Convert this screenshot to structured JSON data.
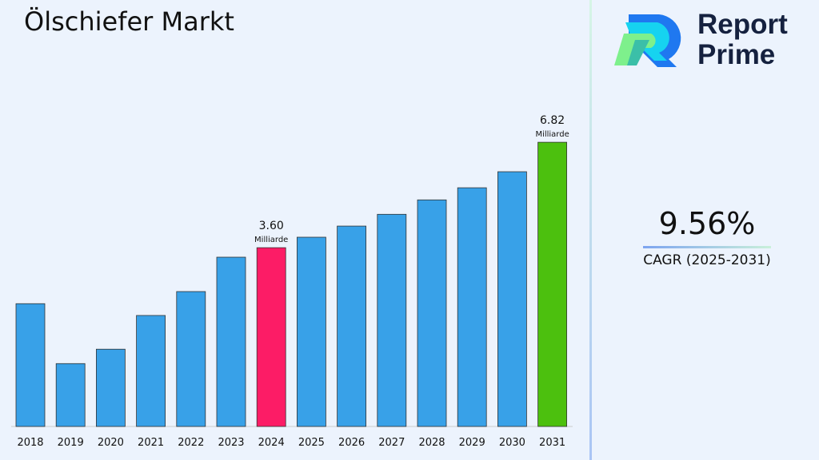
{
  "title": "Ölschiefer Markt",
  "brand": {
    "line1": "Report",
    "line2": "Prime"
  },
  "cagr": {
    "value": "9.56%",
    "label": "CAGR (2025-2031)"
  },
  "chart_data": {
    "type": "bar",
    "title": "Ölschiefer Markt",
    "categories": [
      "2018",
      "2019",
      "2020",
      "2021",
      "2022",
      "2023",
      "2024",
      "2025",
      "2026",
      "2027",
      "2028",
      "2029",
      "2030",
      "2031"
    ],
    "values": [
      1.89,
      0.06,
      0.5,
      1.53,
      2.26,
      3.31,
      3.6,
      3.92,
      4.26,
      4.62,
      5.06,
      5.43,
      5.92,
      6.82
    ],
    "ylim": [
      -1.86,
      7.5
    ],
    "grid": false,
    "colors": {
      "default": "#38a1e8",
      "highlight_2024": "#fc1c66",
      "highlight_2031": "#4cc00e"
    },
    "annotations": [
      {
        "category": "2024",
        "value_label": "3.60",
        "unit": "Milliarde"
      },
      {
        "category": "2031",
        "value_label": "6.82",
        "unit": "Milliarde"
      }
    ]
  }
}
